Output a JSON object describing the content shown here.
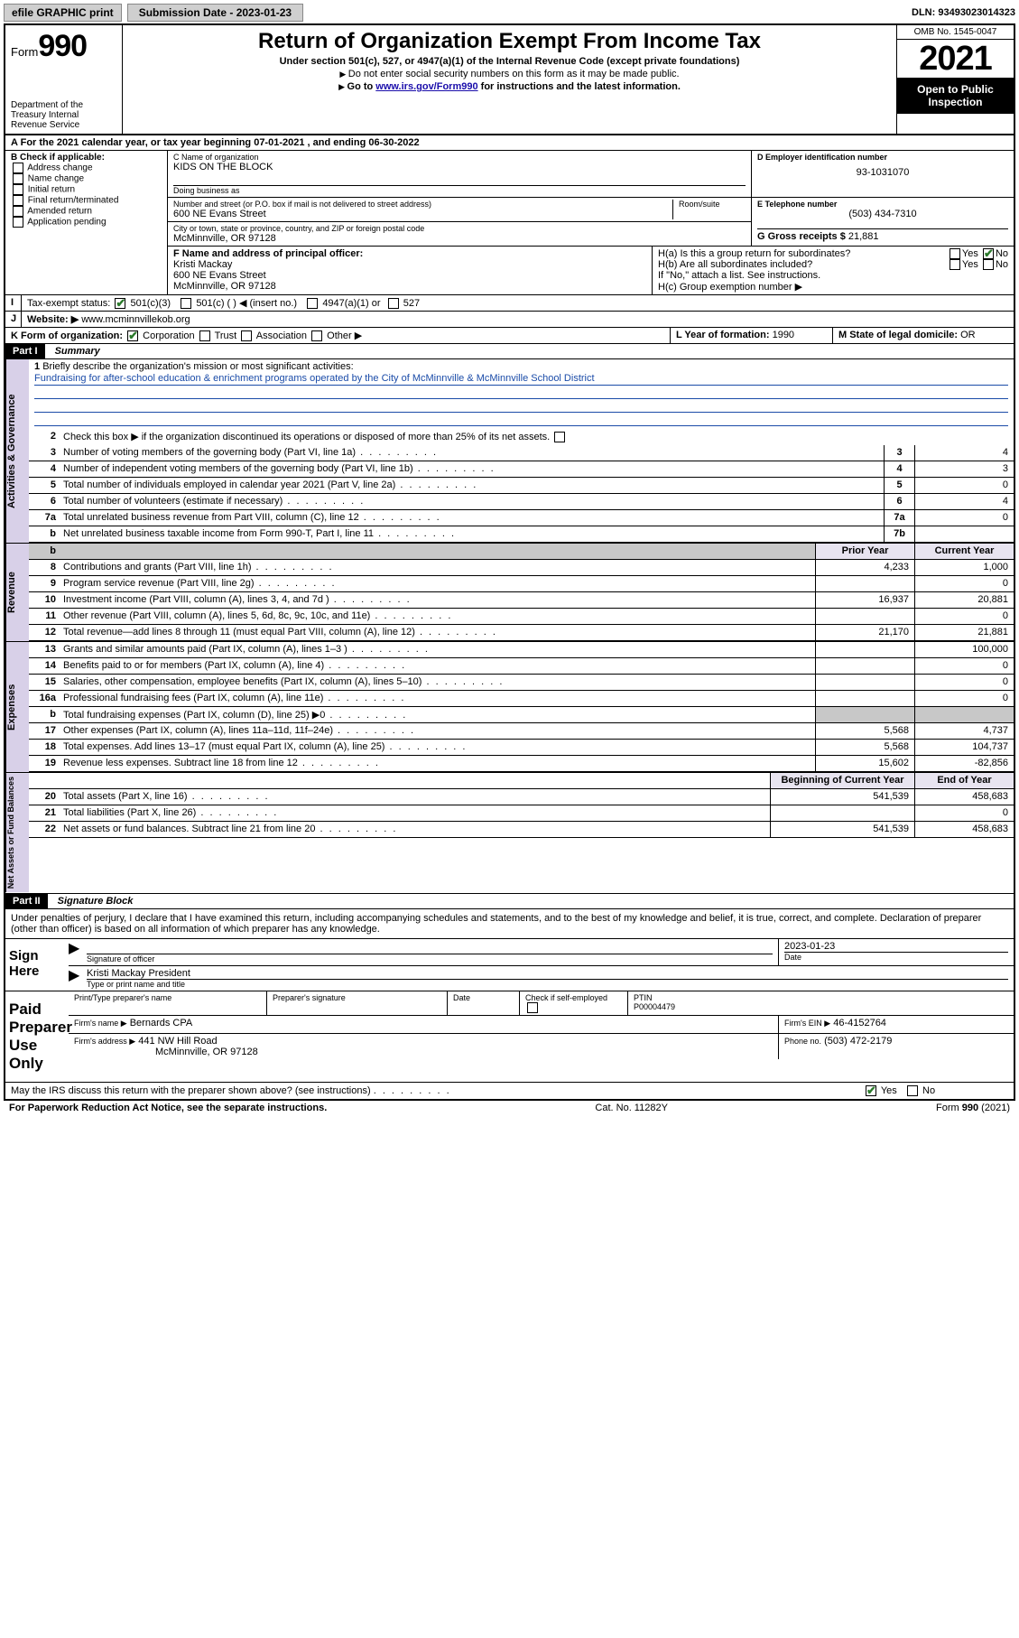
{
  "topbar": {
    "efile": "efile GRAPHIC print",
    "submission_label": "Submission Date - 2023-01-23",
    "dln": "DLN: 93493023014323"
  },
  "header": {
    "form_label": "Form",
    "form_number": "990",
    "dept": "Department of the Treasury\nInternal Revenue Service",
    "title": "Return of Organization Exempt From Income Tax",
    "subtitle": "Under section 501(c), 527, or 4947(a)(1) of the Internal Revenue Code (except private foundations)",
    "note1": "Do not enter social security numbers on this form as it may be made public.",
    "note2_a": "Go to ",
    "note2_link": "www.irs.gov/Form990",
    "note2_b": " for instructions and the latest information.",
    "omb": "OMB No. 1545-0047",
    "year": "2021",
    "open": "Open to Public Inspection"
  },
  "row_a": "For the 2021 calendar year, or tax year beginning 07-01-2021   , and ending 06-30-2022",
  "box_b": {
    "hd": "B Check if applicable:",
    "opts": [
      "Address change",
      "Name change",
      "Initial return",
      "Final return/terminated",
      "Amended return",
      "Application pending"
    ]
  },
  "box_c": {
    "name_lbl": "C Name of organization",
    "name": "KIDS ON THE BLOCK",
    "dba_lbl": "Doing business as",
    "dba": "",
    "street_lbl": "Number and street (or P.O. box if mail is not delivered to street address)",
    "room_lbl": "Room/suite",
    "street": "600 NE Evans Street",
    "city_lbl": "City or town, state or province, country, and ZIP or foreign postal code",
    "city": "McMinnville, OR  97128"
  },
  "box_d": {
    "lbl": "D Employer identification number",
    "val": "93-1031070"
  },
  "box_e": {
    "lbl": "E Telephone number",
    "val": "(503) 434-7310"
  },
  "box_g": {
    "lbl": "G Gross receipts $",
    "val": "21,881"
  },
  "box_f": {
    "lbl": "F Name and address of principal officer:",
    "name": "Kristi Mackay",
    "addr1": "600 NE Evans Street",
    "addr2": "McMinnville, OR  97128"
  },
  "box_h": {
    "a": "H(a)  Is this a group return for subordinates?",
    "a_yes": "Yes",
    "a_no": "No",
    "b": "H(b)  Are all subordinates included?",
    "b_note": "If \"No,\" attach a list. See instructions.",
    "c": "H(c)  Group exemption number ▶"
  },
  "row_i": {
    "lbl": "Tax-exempt status:",
    "o1": "501(c)(3)",
    "o2": "501(c) (  ) ◀ (insert no.)",
    "o3": "4947(a)(1) or",
    "o4": "527"
  },
  "row_j": {
    "lbl": "Website: ▶",
    "val": "www.mcminnvillekob.org"
  },
  "row_k": {
    "lbl": "K Form of organization:",
    "o1": "Corporation",
    "o2": "Trust",
    "o3": "Association",
    "o4": "Other ▶"
  },
  "row_l": {
    "lbl": "L Year of formation:",
    "val": "1990"
  },
  "row_m": {
    "lbl": "M State of legal domicile:",
    "val": "OR"
  },
  "part1": {
    "hd": "Part I",
    "title": "Summary",
    "q1": "Briefly describe the organization's mission or most significant activities:",
    "mission": "Fundraising for after-school education & enrichment programs operated by the City of McMinnville & McMinnville School District",
    "q2": "Check this box ▶     if the organization discontinued its operations or disposed of more than 25% of its net assets.",
    "lines_gov": [
      {
        "n": "3",
        "t": "Number of voting members of the governing body (Part VI, line 1a)",
        "box": "3",
        "v": "4"
      },
      {
        "n": "4",
        "t": "Number of independent voting members of the governing body (Part VI, line 1b)",
        "box": "4",
        "v": "3"
      },
      {
        "n": "5",
        "t": "Total number of individuals employed in calendar year 2021 (Part V, line 2a)",
        "box": "5",
        "v": "0"
      },
      {
        "n": "6",
        "t": "Total number of volunteers (estimate if necessary)",
        "box": "6",
        "v": "4"
      },
      {
        "n": "7a",
        "t": "Total unrelated business revenue from Part VIII, column (C), line 12",
        "box": "7a",
        "v": "0"
      },
      {
        "n": "b",
        "t": "Net unrelated business taxable income from Form 990-T, Part I, line 11",
        "box": "7b",
        "v": ""
      }
    ],
    "col_hd": {
      "prior": "Prior Year",
      "current": "Current Year"
    },
    "lines_rev": [
      {
        "n": "8",
        "t": "Contributions and grants (Part VIII, line 1h)",
        "p": "4,233",
        "c": "1,000"
      },
      {
        "n": "9",
        "t": "Program service revenue (Part VIII, line 2g)",
        "p": "",
        "c": "0"
      },
      {
        "n": "10",
        "t": "Investment income (Part VIII, column (A), lines 3, 4, and 7d )",
        "p": "16,937",
        "c": "20,881"
      },
      {
        "n": "11",
        "t": "Other revenue (Part VIII, column (A), lines 5, 6d, 8c, 9c, 10c, and 11e)",
        "p": "",
        "c": "0"
      },
      {
        "n": "12",
        "t": "Total revenue—add lines 8 through 11 (must equal Part VIII, column (A), line 12)",
        "p": "21,170",
        "c": "21,881"
      }
    ],
    "lines_exp": [
      {
        "n": "13",
        "t": "Grants and similar amounts paid (Part IX, column (A), lines 1–3 )",
        "p": "",
        "c": "100,000"
      },
      {
        "n": "14",
        "t": "Benefits paid to or for members (Part IX, column (A), line 4)",
        "p": "",
        "c": "0"
      },
      {
        "n": "15",
        "t": "Salaries, other compensation, employee benefits (Part IX, column (A), lines 5–10)",
        "p": "",
        "c": "0"
      },
      {
        "n": "16a",
        "t": "Professional fundraising fees (Part IX, column (A), line 11e)",
        "p": "",
        "c": "0"
      },
      {
        "n": "b",
        "t": "Total fundraising expenses (Part IX, column (D), line 25) ▶0",
        "p": "GRAY",
        "c": "GRAY"
      },
      {
        "n": "17",
        "t": "Other expenses (Part IX, column (A), lines 11a–11d, 11f–24e)",
        "p": "5,568",
        "c": "4,737"
      },
      {
        "n": "18",
        "t": "Total expenses. Add lines 13–17 (must equal Part IX, column (A), line 25)",
        "p": "5,568",
        "c": "104,737"
      },
      {
        "n": "19",
        "t": "Revenue less expenses. Subtract line 18 from line 12",
        "p": "15,602",
        "c": "-82,856"
      }
    ],
    "col_hd2": {
      "prior": "Beginning of Current Year",
      "current": "End of Year"
    },
    "lines_net": [
      {
        "n": "20",
        "t": "Total assets (Part X, line 16)",
        "p": "541,539",
        "c": "458,683"
      },
      {
        "n": "21",
        "t": "Total liabilities (Part X, line 26)",
        "p": "",
        "c": "0"
      },
      {
        "n": "22",
        "t": "Net assets or fund balances. Subtract line 21 from line 20",
        "p": "541,539",
        "c": "458,683"
      }
    ],
    "vlabels": {
      "gov": "Activities & Governance",
      "rev": "Revenue",
      "exp": "Expenses",
      "net": "Net Assets or Fund Balances"
    }
  },
  "part2": {
    "hd": "Part II",
    "title": "Signature Block",
    "decl": "Under penalties of perjury, I declare that I have examined this return, including accompanying schedules and statements, and to the best of my knowledge and belief, it is true, correct, and complete. Declaration of preparer (other than officer) is based on all information of which preparer has any knowledge.",
    "sign_here": "Sign Here",
    "sig_officer": "Signature of officer",
    "date_lbl": "Date",
    "date": "2023-01-23",
    "officer_name": "Kristi Mackay  President",
    "type_name": "Type or print name and title",
    "paid": "Paid Preparer Use Only",
    "pp_name_lbl": "Print/Type preparer's name",
    "pp_sig_lbl": "Preparer's signature",
    "pp_date_lbl": "Date",
    "pp_check": "Check       if self-employed",
    "ptin_lbl": "PTIN",
    "ptin": "P00004479",
    "firm_name_lbl": "Firm's name    ▶",
    "firm_name": "Bernards CPA",
    "firm_ein_lbl": "Firm's EIN ▶",
    "firm_ein": "46-4152764",
    "firm_addr_lbl": "Firm's address ▶",
    "firm_addr1": "441 NW Hill Road",
    "firm_addr2": "McMinnville, OR  97128",
    "phone_lbl": "Phone no.",
    "phone": "(503) 472-2179",
    "discuss": "May the IRS discuss this return with the preparer shown above? (see instructions)",
    "yes": "Yes",
    "no": "No"
  },
  "footer": {
    "left": "For Paperwork Reduction Act Notice, see the separate instructions.",
    "mid": "Cat. No. 11282Y",
    "right": "Form 990 (2021)"
  }
}
